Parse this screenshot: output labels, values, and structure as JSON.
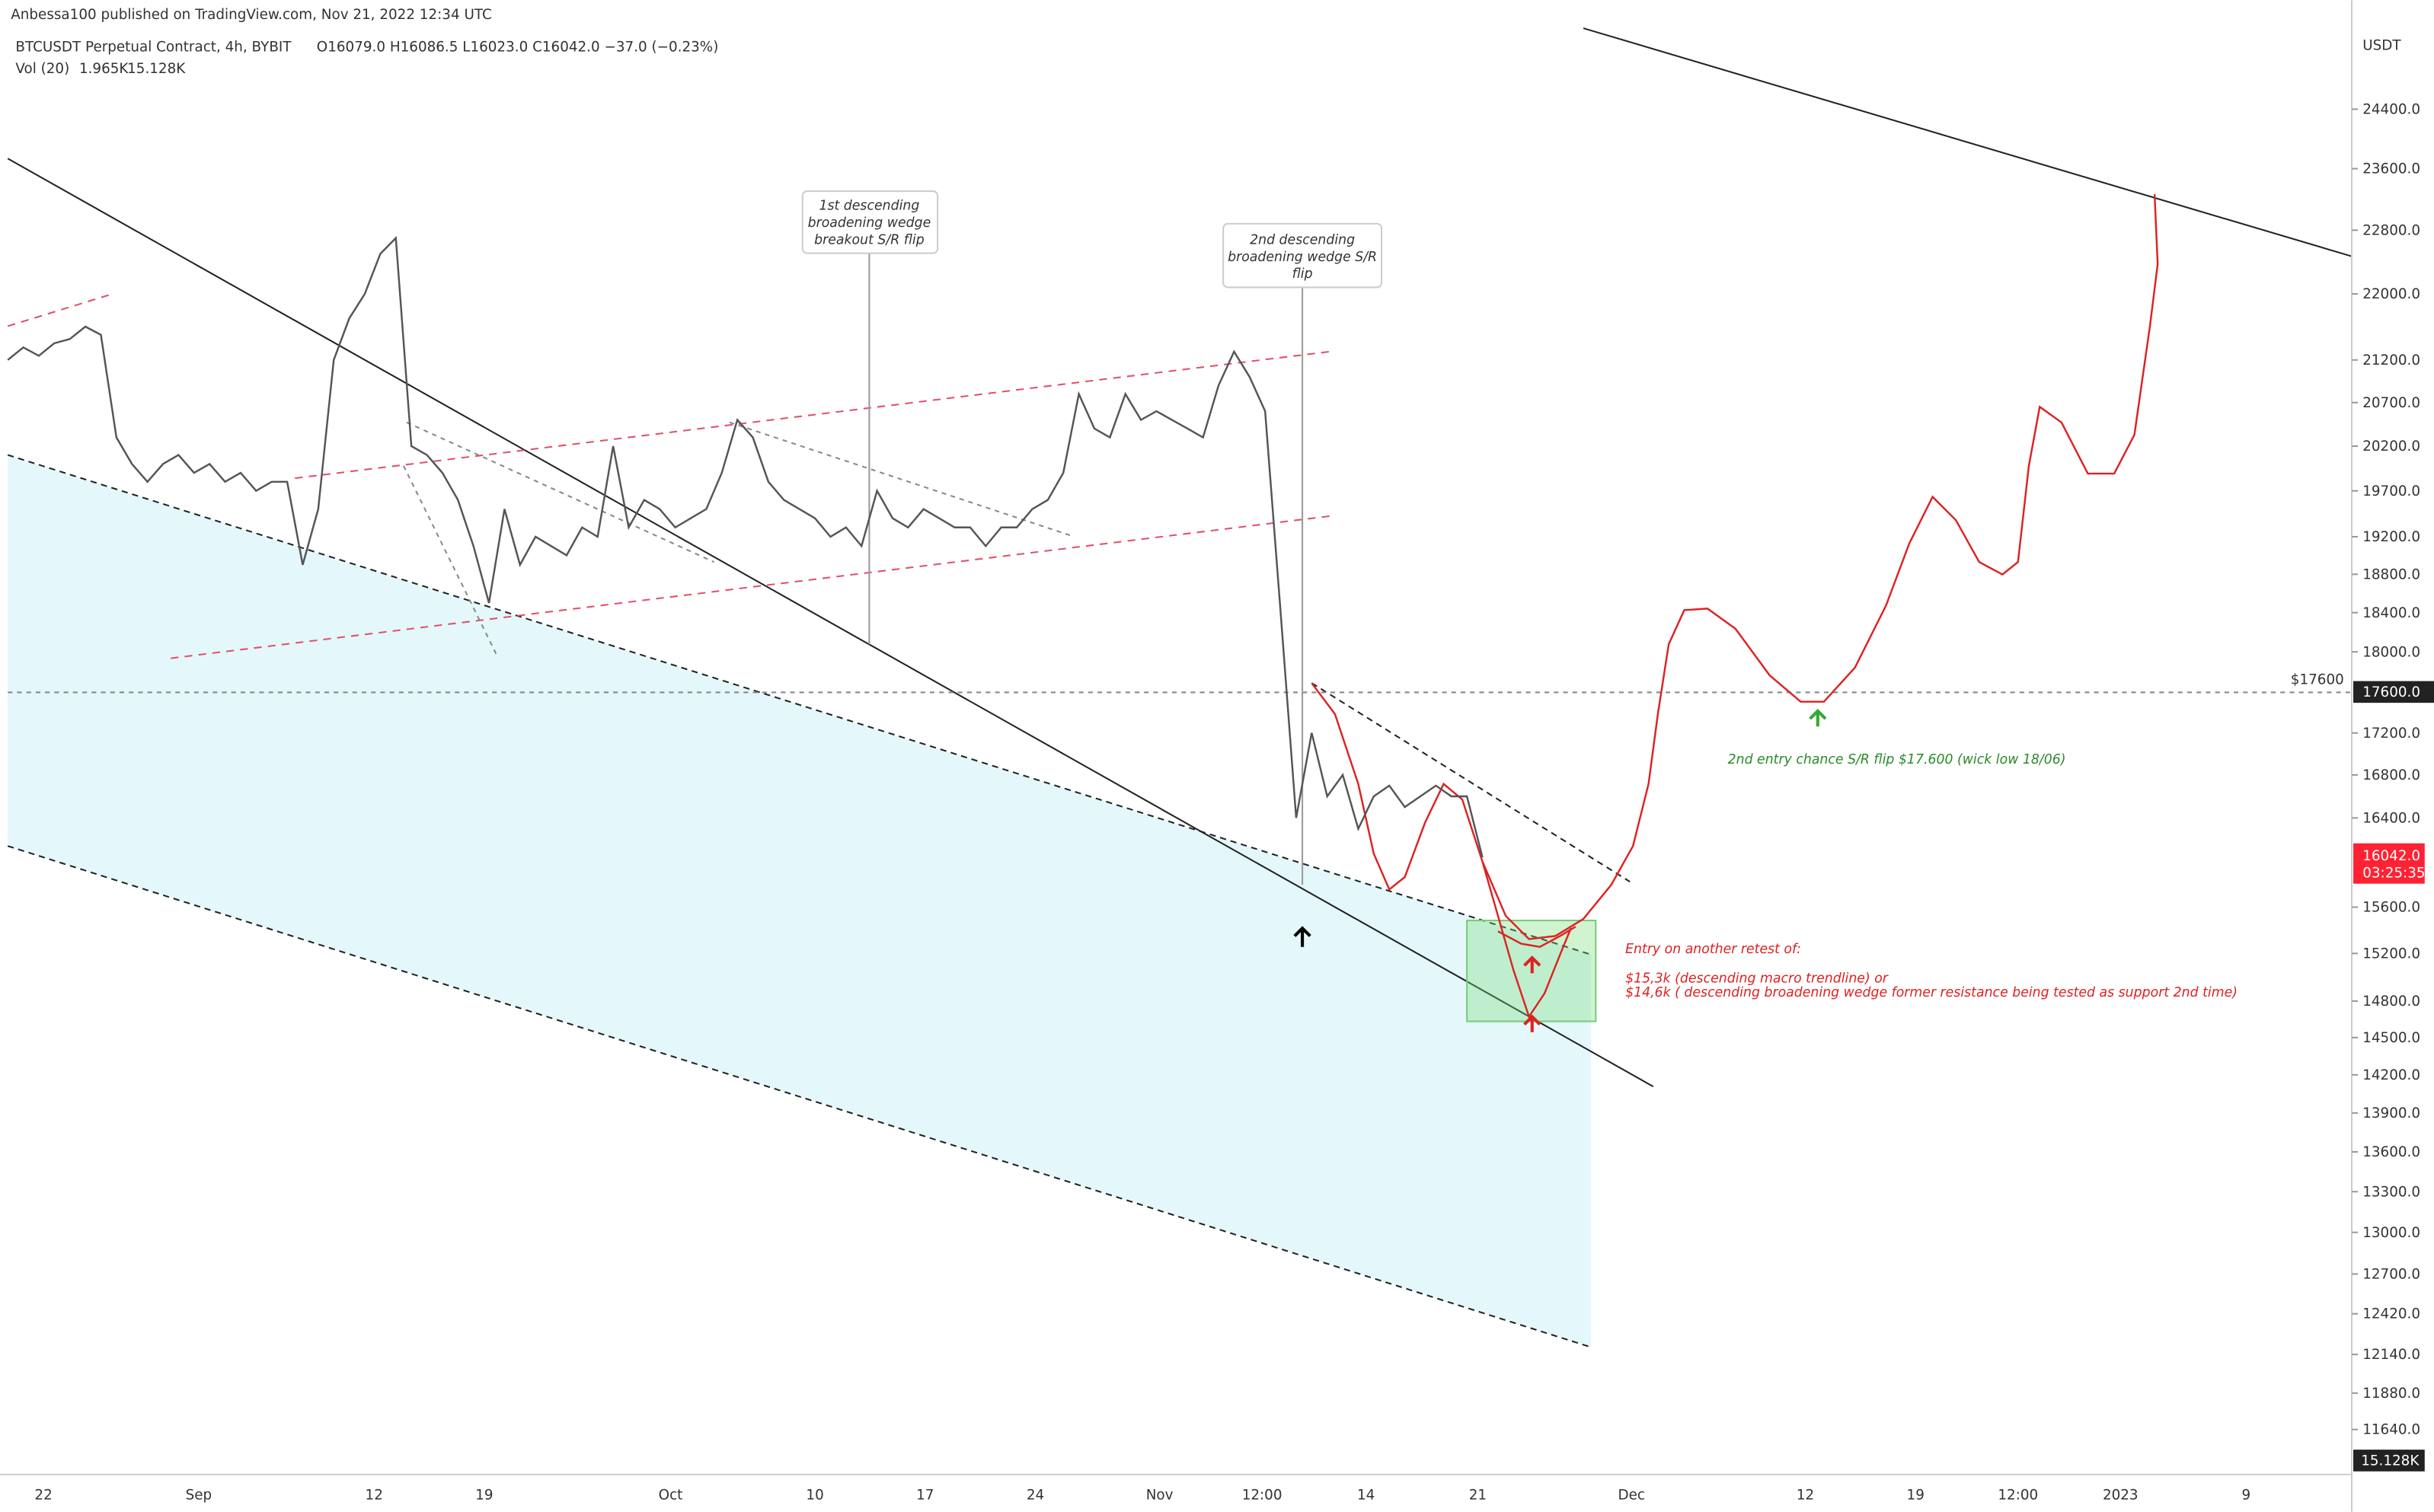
{
  "header": {
    "publisher": "Anbessa100 published on TradingView.com, Nov 21, 2022 12:34 UTC",
    "symbol": "BTCUSDT Perpetual Contract, 4h, BYBIT",
    "ohlc": "O16079.0 H16086.5 L16023.0 C16042.0 −37.0 (−0.23%)",
    "volume": "Vol (20)",
    "vol1": "1.965K",
    "vol2": "15.128K"
  },
  "chart_data": {
    "type": "line",
    "color": "#555555",
    "log_scale": true,
    "currency": "USDT",
    "ylim": [
      11350,
      25600
    ],
    "yticks": [
      {
        "value": 24400,
        "label": "24400.0"
      },
      {
        "value": 23600,
        "label": "23600.0"
      },
      {
        "value": 22800,
        "label": "22800.0"
      },
      {
        "value": 22000,
        "label": "22000.0"
      },
      {
        "value": 21200,
        "label": "21200.0"
      },
      {
        "value": 20700,
        "label": "20700.0"
      },
      {
        "value": 20200,
        "label": "20200.0"
      },
      {
        "value": 19700,
        "label": "19700.0"
      },
      {
        "value": 19200,
        "label": "19200.0"
      },
      {
        "value": 18800,
        "label": "18800.0"
      },
      {
        "value": 18400,
        "label": "18400.0"
      },
      {
        "value": 18000,
        "label": "18000.0"
      },
      {
        "value": 17200,
        "label": "17200.0"
      },
      {
        "value": 16800,
        "label": "16800.0"
      },
      {
        "value": 16400,
        "label": "16400.0"
      },
      {
        "value": 15600,
        "label": "15600.0"
      },
      {
        "value": 15200,
        "label": "15200.0"
      },
      {
        "value": 14800,
        "label": "14800.0"
      },
      {
        "value": 14500,
        "label": "14500.0"
      },
      {
        "value": 14200,
        "label": "14200.0"
      },
      {
        "value": 13900,
        "label": "13900.0"
      },
      {
        "value": 13600,
        "label": "13600.0"
      },
      {
        "value": 13300,
        "label": "13300.0"
      },
      {
        "value": 13000,
        "label": "13000.0"
      },
      {
        "value": 12700,
        "label": "12700.0"
      },
      {
        "value": 12420,
        "label": "12420.0"
      },
      {
        "value": 12140,
        "label": "12140.0"
      },
      {
        "value": 11880,
        "label": "11880.0"
      },
      {
        "value": 11640,
        "label": "11640.0"
      }
    ],
    "x_labels": [
      "22",
      "Sep",
      "12",
      "19",
      "Oct",
      "10",
      "17",
      "24",
      "Nov",
      "12:00",
      "14",
      "21",
      "Dec",
      "12",
      "19",
      "12:00",
      "2023",
      "9"
    ],
    "values": [
      21200,
      21350,
      21250,
      21400,
      21450,
      21600,
      21500,
      20300,
      20000,
      19800,
      20000,
      20100,
      19900,
      20000,
      19800,
      19900,
      19700,
      19800,
      19800,
      18900,
      19500,
      21200,
      21700,
      22000,
      22500,
      22700,
      20200,
      20100,
      19900,
      19600,
      19100,
      18500,
      19500,
      18900,
      19200,
      19100,
      19000,
      19300,
      19200,
      20200,
      19300,
      19600,
      19500,
      19300,
      19400,
      19500,
      19900,
      20500,
      20300,
      19800,
      19600,
      19500,
      19400,
      19200,
      19300,
      19100,
      19700,
      19400,
      19300,
      19500,
      19400,
      19300,
      19300,
      19100,
      19300,
      19300,
      19500,
      19600,
      19900,
      20800,
      20400,
      20300,
      20800,
      20500,
      20600,
      20500,
      20400,
      20300,
      20900,
      21300,
      21000,
      20600,
      18400,
      16400,
      17200,
      16600,
      16800,
      16300,
      16600,
      16700,
      16500,
      16600,
      16700,
      16600,
      16600,
      16042
    ],
    "last_price": {
      "value": 16042,
      "label": "16042.0"
    },
    "countdown": "03:25:35",
    "volume_label": "15.128K",
    "level": {
      "value": 17600,
      "label": "17600.0",
      "tag": "$17600"
    },
    "annotations": {
      "callout1": [
        "1st descending",
        "broadening wedge",
        "breakout S/R flip"
      ],
      "callout2": [
        "2nd descending",
        "broadening wedge S/R",
        "flip"
      ],
      "green_note": "2nd entry chance S/R flip $17.600 (wick low 18/06)",
      "red_note": [
        "Entry on another retest of:",
        "$15,3k (descending macro trendline) or",
        "$14,6k ( descending broadening wedge former resistance being tested as support 2nd time)"
      ]
    }
  }
}
